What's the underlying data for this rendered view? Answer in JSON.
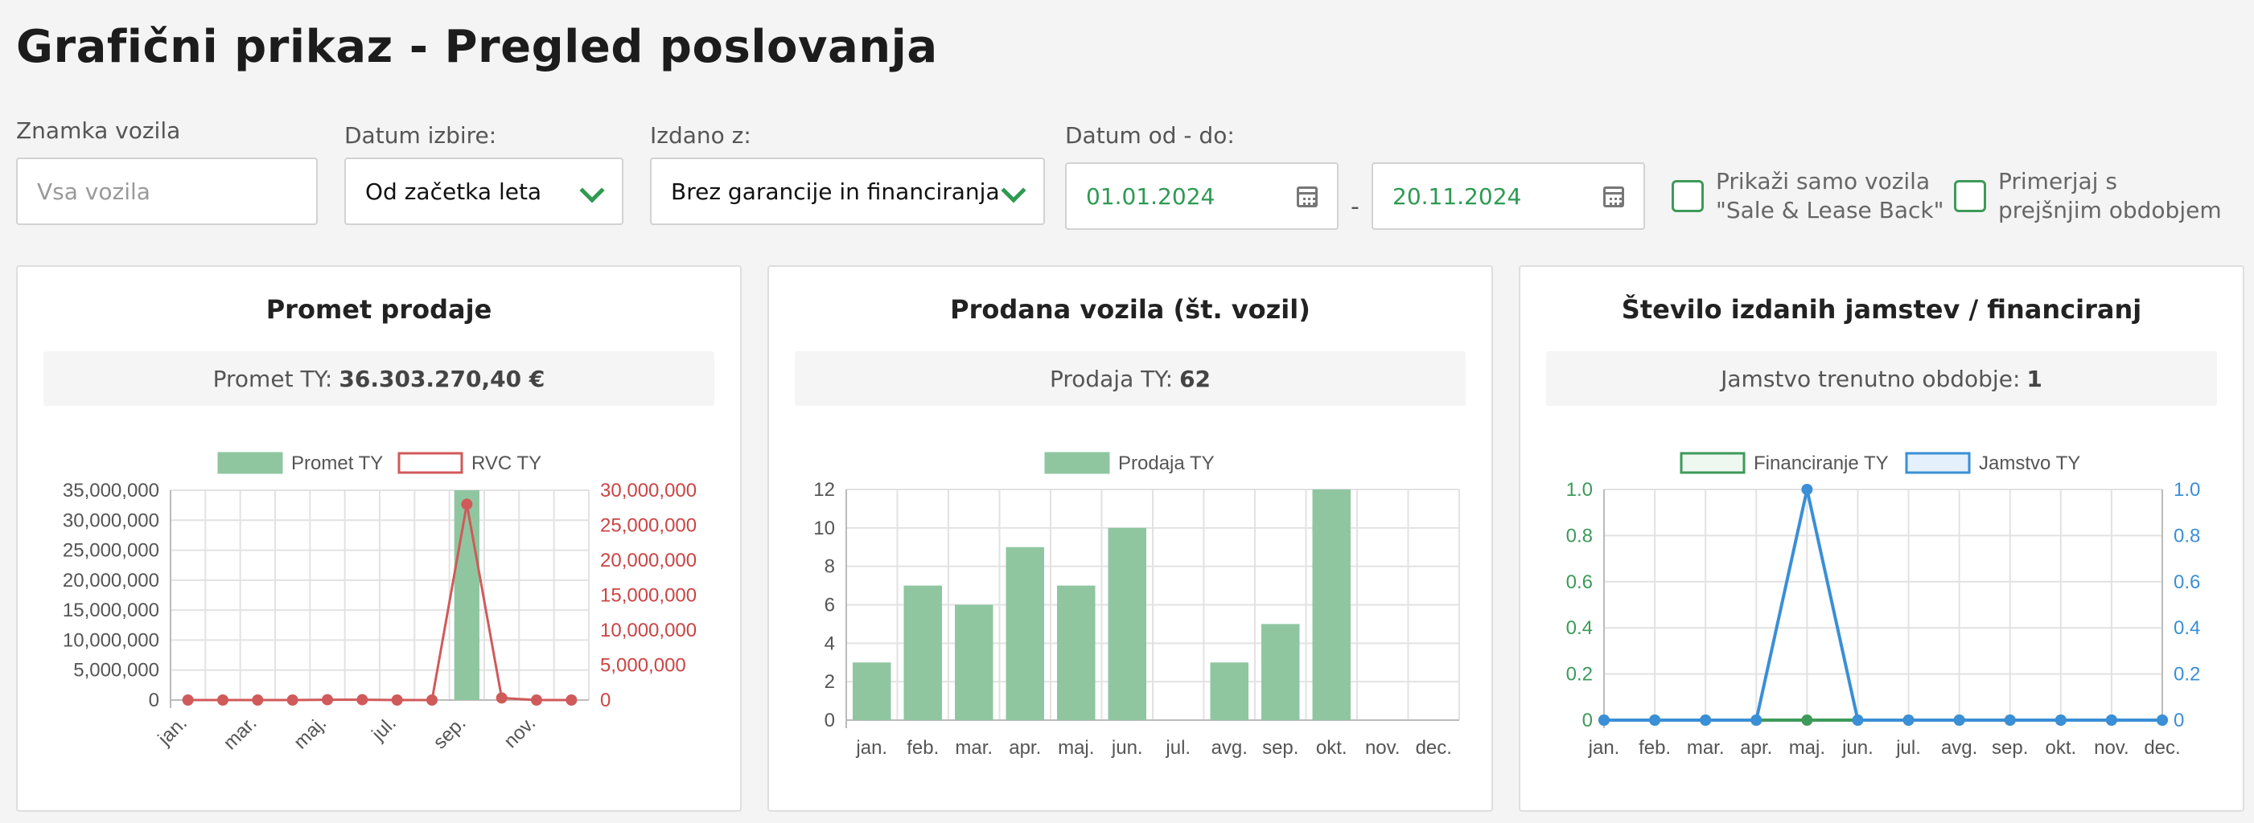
{
  "title": "Grafični prikaz - Pregled poslovanja",
  "filters": {
    "brand_label": "Znamka vozila",
    "brand_placeholder": "Vsa vozila",
    "date_select_label": "Datum izbire:",
    "date_select_value": "Od začetka leta",
    "issued_label": "Izdano z:",
    "issued_value": "Brez garancije in financiranja",
    "range_label": "Datum od - do:",
    "date_from": "01.01.2024",
    "date_to": "20.11.2024",
    "dash": "-",
    "sale_lease_line1": "Prikaži samo vozila",
    "sale_lease_line2": "\"Sale & Lease Back\"",
    "compare_line1": "Primerjaj s",
    "compare_line2": "prejšnjim obdobjem"
  },
  "cards": [
    {
      "title": "Promet prodaje",
      "summary_label": "Promet TY:",
      "summary_value": "36.303.270,40  €"
    },
    {
      "title": "Prodana vozila (št. vozil)",
      "summary_label": "Prodaja TY:",
      "summary_value": "62"
    },
    {
      "title": "Število izdanih jamstev / financiranj",
      "summary_label": "Jamstvo trenutno obdobje:",
      "summary_value": "1"
    }
  ],
  "chart_data": [
    {
      "type": "bar",
      "categories": [
        "jan.",
        "feb.",
        "mar.",
        "apr.",
        "maj.",
        "jun.",
        "jul.",
        "avg.",
        "sep.",
        "okt.",
        "nov.",
        "dec."
      ],
      "tick_labels": [
        "jan.",
        "mar.",
        "maj.",
        "jul.",
        "sep.",
        "nov."
      ],
      "series": [
        {
          "name": "Promet TY",
          "type": "bar",
          "axis": "left",
          "color": "#8fc6a0",
          "values": [
            0,
            0,
            0,
            0,
            0,
            0,
            0,
            0,
            36303270.4,
            0,
            0,
            0
          ]
        },
        {
          "name": "RVC TY",
          "type": "line",
          "axis": "right",
          "color": "#d05a5a",
          "values": [
            0,
            0,
            0,
            0,
            50000,
            50000,
            0,
            0,
            28000000,
            300000,
            0,
            0
          ]
        }
      ],
      "y_left": {
        "min": 0,
        "max": 35000000,
        "ticks": [
          "35,000,000",
          "30,000,000",
          "25,000,000",
          "20,000,000",
          "15,000,000",
          "10,000,000",
          "5,000,000",
          "0"
        ],
        "color": "#555555"
      },
      "y_right": {
        "min": 0,
        "max": 30000000,
        "ticks": [
          "30,000,000",
          "25,000,000",
          "20,000,000",
          "15,000,000",
          "10,000,000",
          "5,000,000",
          "0"
        ],
        "color": "#cc4444"
      },
      "legend_position": "top"
    },
    {
      "type": "bar",
      "categories": [
        "jan.",
        "feb.",
        "mar.",
        "apr.",
        "maj.",
        "jun.",
        "jul.",
        "avg.",
        "sep.",
        "okt.",
        "nov.",
        "dec."
      ],
      "series": [
        {
          "name": "Prodaja TY",
          "color": "#8fc6a0",
          "values": [
            3,
            7,
            6,
            9,
            7,
            10,
            0,
            3,
            5,
            12,
            0,
            0
          ]
        }
      ],
      "y": {
        "min": 0,
        "max": 12,
        "ticks": [
          "12",
          "10",
          "8",
          "6",
          "4",
          "2",
          "0"
        ]
      },
      "legend_position": "top"
    },
    {
      "type": "line",
      "categories": [
        "jan.",
        "feb.",
        "mar.",
        "apr.",
        "maj.",
        "jun.",
        "jul.",
        "avg.",
        "sep.",
        "okt.",
        "nov.",
        "dec."
      ],
      "series": [
        {
          "name": "Financiranje TY",
          "axis": "left",
          "color": "#3d9a5a",
          "values": [
            0,
            0,
            0,
            0,
            0,
            0,
            0,
            0,
            0,
            0,
            0,
            0
          ]
        },
        {
          "name": "Jamstvo TY",
          "axis": "right",
          "color": "#3a8fd6",
          "values": [
            0,
            0,
            0,
            0,
            1,
            0,
            0,
            0,
            0,
            0,
            0,
            0
          ]
        }
      ],
      "y_left": {
        "min": 0,
        "max": 1,
        "ticks": [
          "1.0",
          "0.8",
          "0.6",
          "0.4",
          "0.2",
          "0"
        ],
        "color": "#3d9a5a"
      },
      "y_right": {
        "min": 0,
        "max": 1,
        "ticks": [
          "1.0",
          "0.8",
          "0.6",
          "0.4",
          "0.2",
          "0"
        ],
        "color": "#3a8fd6"
      },
      "legend_position": "top"
    }
  ]
}
